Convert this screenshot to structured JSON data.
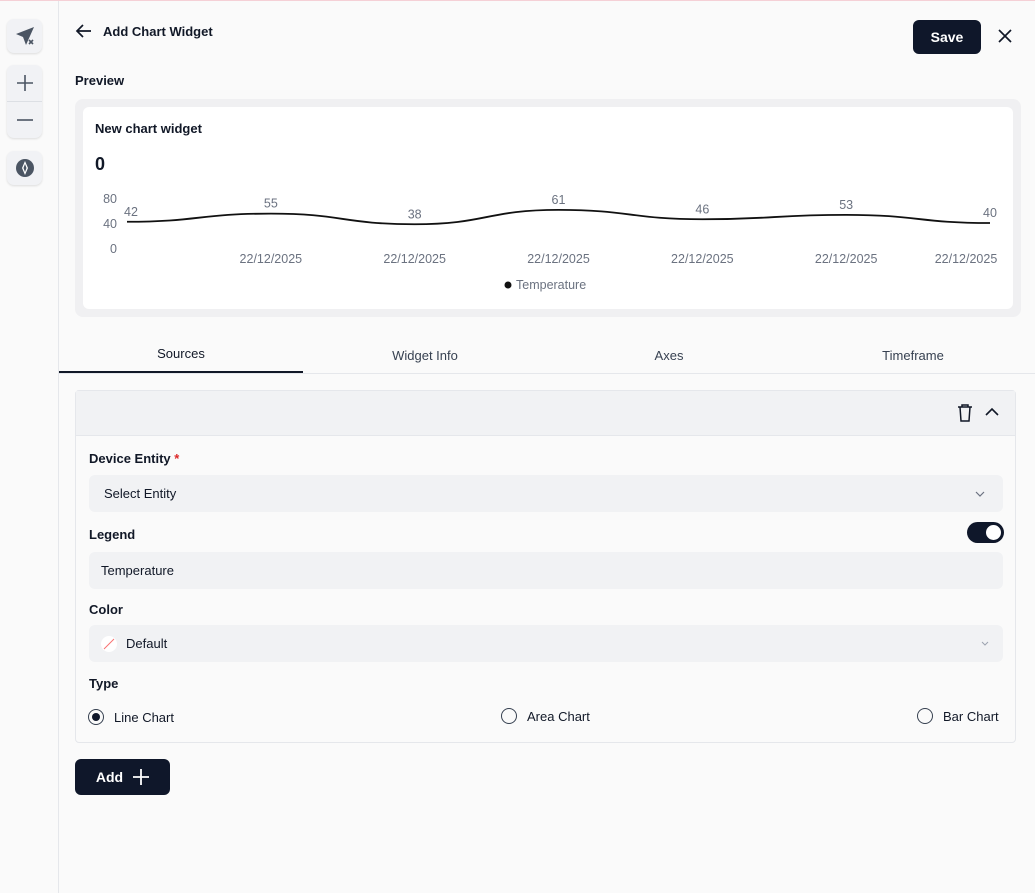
{
  "header": {
    "title": "Add Chart Widget",
    "save_label": "Save"
  },
  "preview": {
    "label": "Preview",
    "widget_title": "New chart widget",
    "value": "0"
  },
  "chart_data": {
    "type": "line",
    "x": [
      "",
      "22/12/2025",
      "22/12/2025",
      "22/12/2025",
      "22/12/2025",
      "22/12/2025",
      "22/12/2025"
    ],
    "values": [
      42,
      55,
      38,
      61,
      46,
      53,
      40
    ],
    "yticks": [
      80,
      40,
      0
    ],
    "ylim": [
      0,
      80
    ],
    "series": [
      {
        "name": "Temperature",
        "values": [
          42,
          55,
          38,
          61,
          46,
          53,
          40
        ]
      }
    ],
    "legend": "bottom",
    "color": "#111111",
    "grid": false
  },
  "tabs": [
    {
      "label": "Sources"
    },
    {
      "label": "Widget Info"
    },
    {
      "label": "Axes"
    },
    {
      "label": "Timeframe"
    }
  ],
  "source": {
    "device_label": "Device Entity",
    "required": "*",
    "device_placeholder": "Select Entity",
    "legend_label": "Legend",
    "legend_enabled": true,
    "legend_value": "Temperature",
    "color_label": "Color",
    "color_value": "Default",
    "type_label": "Type",
    "types": [
      {
        "label": "Line Chart",
        "selected": true
      },
      {
        "label": "Area Chart",
        "selected": false
      },
      {
        "label": "Bar Chart",
        "selected": false
      }
    ]
  },
  "add_label": "Add"
}
